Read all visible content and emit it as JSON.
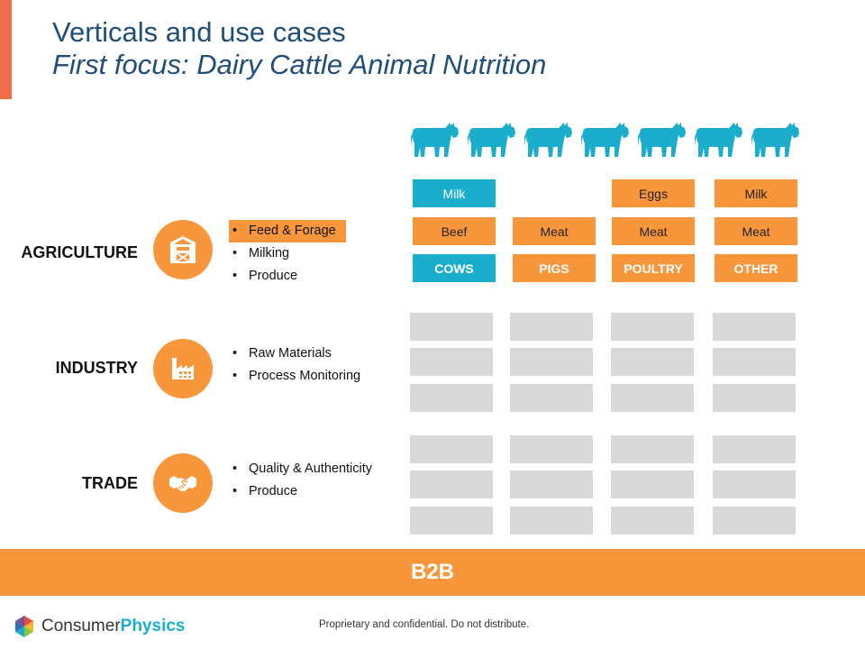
{
  "title": {
    "line1": "Verticals and use cases",
    "line2": "First focus: Dairy Cattle Animal Nutrition"
  },
  "icons": {
    "animal": "cow-icon",
    "agriculture": "barn-icon",
    "industry": "factory-icon",
    "trade": "handshake-icon",
    "logo": "hexagon-logo-icon"
  },
  "colors": {
    "orange": "#f7963b",
    "blue": "#1aaecc",
    "gray": "#d9d9d9",
    "title": "#1f4e79",
    "accent": "#f26b4a"
  },
  "agriculture_columns": [
    {
      "head": "COWS",
      "head_color": "blue",
      "items": [
        {
          "label": "Milk",
          "color": "blue"
        },
        {
          "label": "Beef",
          "color": "orange"
        }
      ]
    },
    {
      "head": "PIGS",
      "head_color": "orange",
      "items": [
        {
          "label": "",
          "color": "none"
        },
        {
          "label": "Meat",
          "color": "orange"
        }
      ]
    },
    {
      "head": "POULTRY",
      "head_color": "orange",
      "items": [
        {
          "label": "Eggs",
          "color": "orange"
        },
        {
          "label": "Meat",
          "color": "orange"
        }
      ]
    },
    {
      "head": "OTHER",
      "head_color": "orange",
      "items": [
        {
          "label": "Milk",
          "color": "orange"
        },
        {
          "label": "Meat",
          "color": "orange"
        }
      ]
    }
  ],
  "verticals": [
    {
      "label": "AGRICULTURE",
      "items": [
        {
          "text": "Feed & Forage",
          "highlight": true
        },
        {
          "text": "Milking",
          "highlight": false
        },
        {
          "text": "Produce",
          "highlight": false
        }
      ]
    },
    {
      "label": "INDUSTRY",
      "items": [
        {
          "text": "Raw Materials",
          "highlight": false
        },
        {
          "text": "Process Monitoring",
          "highlight": false
        }
      ]
    },
    {
      "label": "TRADE",
      "items": [
        {
          "text": "Quality & Authenticity",
          "highlight": false
        },
        {
          "text": "Produce",
          "highlight": false
        }
      ]
    }
  ],
  "b2b_label": "B2B",
  "logo": {
    "part1": "Consumer",
    "part2": "Physics"
  },
  "footer": "Proprietary and confidential. Do not distribute."
}
